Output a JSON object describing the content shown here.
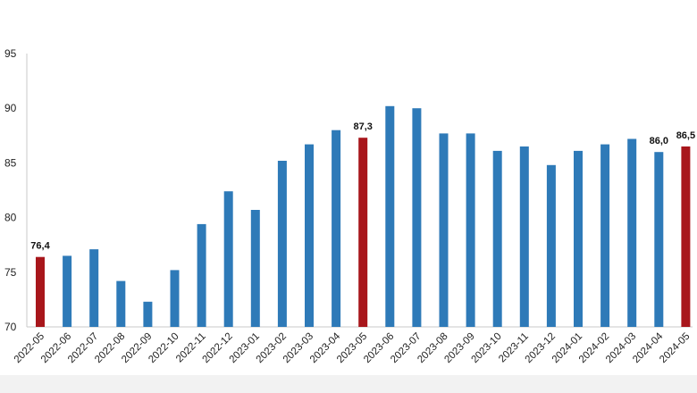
{
  "chart_data": {
    "type": "bar",
    "title": "",
    "xlabel": "",
    "ylabel": "",
    "ylim": [
      70,
      95
    ],
    "yticks": [
      70,
      75,
      80,
      85,
      90,
      95
    ],
    "grid": false,
    "legend": "none",
    "categories": [
      "2022-05",
      "2022-06",
      "2022-07",
      "2022-08",
      "2022-09",
      "2022-10",
      "2022-11",
      "2022-12",
      "2023-01",
      "2023-02",
      "2023-03",
      "2023-04",
      "2023-05",
      "2023-06",
      "2023-07",
      "2023-08",
      "2023-09",
      "2023-10",
      "2023-11",
      "2023-12",
      "2024-01",
      "2024-02",
      "2024-03",
      "2024-04",
      "2024-05"
    ],
    "values": [
      76.4,
      76.5,
      77.1,
      74.2,
      72.3,
      75.2,
      79.4,
      82.4,
      80.7,
      85.2,
      86.7,
      88.0,
      87.3,
      90.2,
      90.0,
      87.7,
      87.7,
      86.1,
      86.5,
      84.8,
      86.1,
      86.7,
      87.2,
      86.0,
      86.5
    ],
    "highlight_indices": [
      0,
      12,
      24
    ],
    "data_labels": [
      {
        "index": 0,
        "text": "76,4"
      },
      {
        "index": 12,
        "text": "87,3"
      },
      {
        "index": 23,
        "text": "86,0"
      },
      {
        "index": 24,
        "text": "86,5"
      }
    ],
    "colors": {
      "bar": "#2e7ab8",
      "highlight": "#a8161b",
      "axis": "#c8c8c8",
      "footer": "#f2f2f2"
    }
  }
}
